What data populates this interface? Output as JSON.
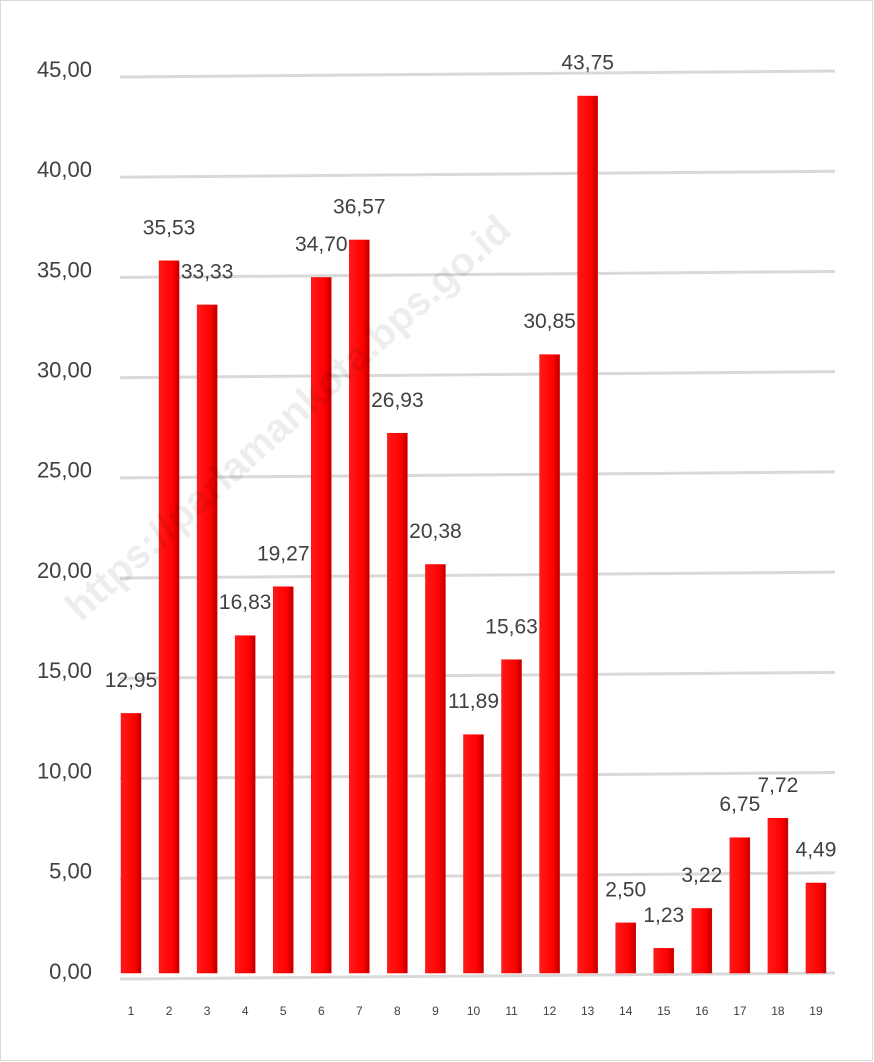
{
  "chart_data": {
    "type": "bar",
    "watermark": "https://parlamankota.bps.go.id",
    "categories": [
      "1",
      "2",
      "3",
      "4",
      "5",
      "6",
      "7",
      "8",
      "9",
      "10",
      "11",
      "12",
      "13",
      "14",
      "15",
      "16",
      "17",
      "18",
      "19"
    ],
    "values": [
      12.95,
      35.53,
      33.33,
      16.83,
      19.27,
      34.7,
      36.57,
      26.93,
      20.38,
      11.89,
      15.63,
      30.85,
      43.75,
      2.5,
      1.23,
      3.22,
      6.75,
      7.72,
      4.49
    ],
    "value_labels": [
      "12,95",
      "35,53",
      "33,33",
      "16,83",
      "19,27",
      "34,70",
      "36,57",
      "26,93",
      "20,38",
      "11,89",
      "15,63",
      "30,85",
      "43,75",
      "2,50",
      "1,23",
      "3,22",
      "6,75",
      "7,72",
      "4,49"
    ],
    "color": "#ff0000",
    "ylim": [
      0,
      45
    ],
    "yticks": [
      {
        "value": 0,
        "label": "0,00"
      },
      {
        "value": 5,
        "label": "5,00"
      },
      {
        "value": 10,
        "label": "10,00"
      },
      {
        "value": 15,
        "label": "15,00"
      },
      {
        "value": 20,
        "label": "20,00"
      },
      {
        "value": 25,
        "label": "25,00"
      },
      {
        "value": 30,
        "label": "30,00"
      },
      {
        "value": 35,
        "label": "35,00"
      },
      {
        "value": 40,
        "label": "40,00"
      },
      {
        "value": 45,
        "label": "45,00"
      }
    ],
    "grid": true
  }
}
